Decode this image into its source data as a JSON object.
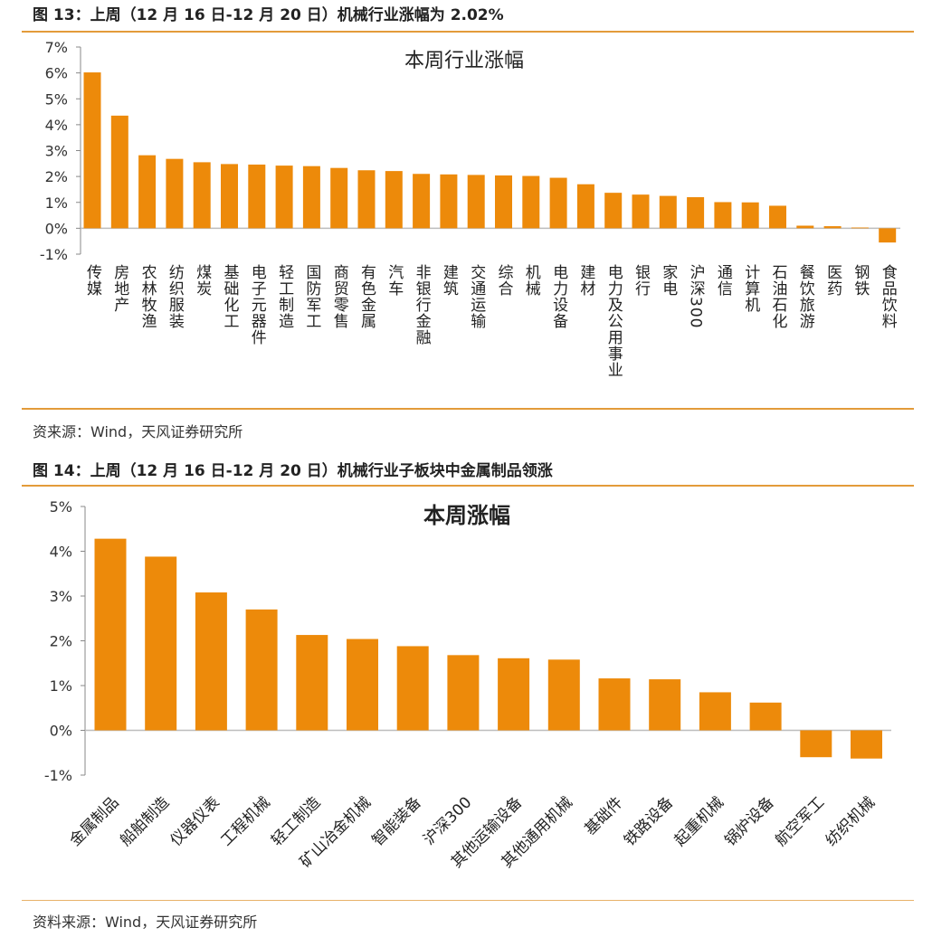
{
  "figure1": {
    "title": "图 13：上周（12 月 16 日-12 月 20 日）机械行业涨幅为 2.02%",
    "source": "资来源：Wind，天风证券研究所"
  },
  "figure2": {
    "title": "图 14：上周（12 月 16 日-12 月 20 日）机械行业子板块中金属制品领涨",
    "source": "资料来源：Wind，天风证券研究所"
  },
  "colors": {
    "bar": "#ed8a0a",
    "rule": "#e39b3a"
  },
  "chart_data": [
    {
      "type": "bar",
      "title": "本周行业涨幅",
      "xlabel": "",
      "ylabel": "",
      "ylim": [
        -1,
        7
      ],
      "yticks": [
        "7%",
        "6%",
        "5%",
        "4%",
        "3%",
        "2%",
        "1%",
        "0%",
        "-1%"
      ],
      "grid": false,
      "legend": "none",
      "categories": [
        "传媒",
        "房地产",
        "农林牧渔",
        "纺织服装",
        "煤炭",
        "基础化工",
        "电子元器件",
        "轻工制造",
        "国防军工",
        "商贸零售",
        "有色金属",
        "汽车",
        "非银行金融",
        "建筑",
        "交通运输",
        "综合",
        "机械",
        "电力设备",
        "建材",
        "电力及公用事业",
        "银行",
        "家电",
        "沪深300",
        "通信",
        "计算机",
        "石油石化",
        "餐饮旅游",
        "医药",
        "钢铁",
        "食品饮料"
      ],
      "values": [
        6.02,
        4.35,
        2.82,
        2.68,
        2.55,
        2.48,
        2.46,
        2.42,
        2.4,
        2.33,
        2.24,
        2.21,
        2.1,
        2.08,
        2.06,
        2.04,
        2.02,
        1.95,
        1.7,
        1.37,
        1.3,
        1.25,
        1.2,
        1.01,
        1.0,
        0.87,
        0.1,
        0.08,
        0.03,
        -0.55
      ]
    },
    {
      "type": "bar",
      "title": "本周涨幅",
      "xlabel": "",
      "ylabel": "",
      "ylim": [
        -1,
        5
      ],
      "yticks": [
        "5%",
        "4%",
        "3%",
        "2%",
        "1%",
        "0%",
        "-1%"
      ],
      "grid": false,
      "legend": "none",
      "categories": [
        "金属制品",
        "船舶制造",
        "仪器仪表",
        "工程机械",
        "轻工制造",
        "矿山冶金机械",
        "智能装备",
        "沪深300",
        "其他运输设备",
        "其他通用机械",
        "基础件",
        "铁路设备",
        "起重机械",
        "锅炉设备",
        "航空军工",
        "纺织机械"
      ],
      "values": [
        4.28,
        3.88,
        3.08,
        2.7,
        2.13,
        2.04,
        1.88,
        1.68,
        1.61,
        1.58,
        1.16,
        1.14,
        0.85,
        0.62,
        -0.6,
        -0.63
      ]
    }
  ]
}
